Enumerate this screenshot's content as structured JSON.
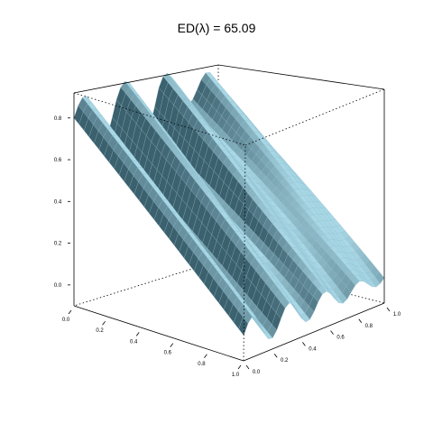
{
  "chart_data": {
    "type": "surface-3d",
    "title": "ED(λ) = 65.09",
    "xlabel": "",
    "ylabel": "",
    "zlabel": "",
    "xlim": [
      0,
      1
    ],
    "ylim": [
      0,
      1
    ],
    "zlim": [
      -0.1,
      0.92
    ],
    "x_ticks": [
      "0.0",
      "0.2",
      "0.4",
      "0.6",
      "0.8",
      "1.0"
    ],
    "y_ticks": [
      "0.0",
      "0.2",
      "0.4",
      "0.6",
      "0.8",
      "1.0"
    ],
    "z_ticks": [
      "0.0",
      "0.2",
      "0.4",
      "0.6",
      "0.8"
    ],
    "surface_color": "#a9d8e6",
    "ridge_color": "#3a5560",
    "grid": false
  }
}
